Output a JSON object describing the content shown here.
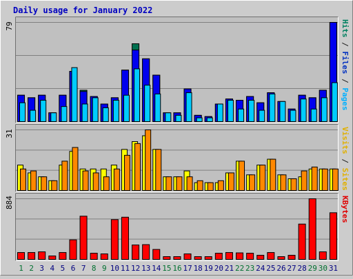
{
  "chart_data": [
    {
      "type": "bar",
      "title": "Daily usage for January 2022",
      "panel": "top",
      "ymax_label": "79",
      "legend_parts": [
        {
          "text": "Pages",
          "color": "#00b0ff"
        },
        {
          "text": " / ",
          "color": "#202020"
        },
        {
          "text": "Files",
          "color": "#0030c0"
        },
        {
          "text": " / ",
          "color": "#202020"
        },
        {
          "text": "Hits",
          "color": "#008060"
        }
      ],
      "categories": [
        "1",
        "2",
        "3",
        "4",
        "5",
        "6",
        "7",
        "8",
        "9",
        "10",
        "11",
        "12",
        "13",
        "14",
        "15",
        "16",
        "17",
        "18",
        "19",
        "20",
        "21",
        "22",
        "23",
        "24",
        "25",
        "26",
        "27",
        "28",
        "29",
        "30",
        "31"
      ],
      "weekend_days": [
        1,
        2,
        8,
        9,
        15,
        16,
        22,
        23,
        29,
        30
      ],
      "ylim": [
        0,
        79
      ],
      "series": [
        {
          "name": "Hits",
          "color": "#007050",
          "values": [
            21,
            19,
            21,
            7,
            21,
            40,
            25,
            20,
            14,
            19,
            41,
            62,
            50,
            37,
            7,
            7,
            26,
            5,
            4,
            14,
            18,
            17,
            20,
            15,
            23,
            16,
            10,
            21,
            19,
            25,
            79
          ]
        },
        {
          "name": "Files",
          "color": "#0000ee",
          "values": [
            21,
            19,
            21,
            7,
            21,
            40,
            24,
            20,
            14,
            19,
            41,
            57,
            50,
            37,
            7,
            7,
            26,
            5,
            4,
            14,
            18,
            17,
            20,
            15,
            23,
            16,
            10,
            21,
            19,
            25,
            79
          ]
        },
        {
          "name": "Pages",
          "color": "#00ccff",
          "values": [
            15,
            9,
            17,
            7,
            12,
            43,
            14,
            19,
            11,
            17,
            21,
            42,
            29,
            22,
            7,
            5,
            23,
            3,
            3,
            14,
            17,
            10,
            17,
            9,
            22,
            16,
            9,
            18,
            10,
            19,
            31
          ]
        }
      ]
    },
    {
      "type": "bar",
      "panel": "middle",
      "ymax_label": "31",
      "legend_parts": [
        {
          "text": "Sites",
          "color": "#e0b000"
        },
        {
          "text": " / ",
          "color": "#202020"
        },
        {
          "text": "Visits",
          "color": "#e0b000"
        }
      ],
      "categories": [
        "1",
        "2",
        "3",
        "4",
        "5",
        "6",
        "7",
        "8",
        "9",
        "10",
        "11",
        "12",
        "13",
        "14",
        "15",
        "16",
        "17",
        "18",
        "19",
        "20",
        "21",
        "22",
        "23",
        "24",
        "25",
        "26",
        "27",
        "28",
        "29",
        "30",
        "31"
      ],
      "ylim": [
        0,
        31
      ],
      "series": [
        {
          "name": "Visits",
          "color": "#ffff00",
          "values": [
            13,
            9,
            7,
            5,
            13,
            20,
            11,
            11,
            11,
            13,
            21,
            25,
            28,
            21,
            7,
            7,
            10,
            4,
            4,
            4,
            9,
            15,
            8,
            13,
            16,
            8,
            6,
            7,
            11,
            11,
            11
          ]
        },
        {
          "name": "Sites",
          "color": "#ff8800",
          "values": [
            11,
            10,
            7,
            5,
            15,
            22,
            10,
            9,
            7,
            11,
            18,
            24,
            31,
            21,
            7,
            7,
            7,
            5,
            4,
            5,
            9,
            15,
            8,
            13,
            16,
            8,
            6,
            10,
            12,
            11,
            11
          ]
        }
      ]
    },
    {
      "type": "bar",
      "panel": "bottom",
      "ymax_label": "884",
      "legend_parts": [
        {
          "text": "KBytes",
          "color": "#e00000"
        }
      ],
      "categories": [
        "1",
        "2",
        "3",
        "4",
        "5",
        "6",
        "7",
        "8",
        "9",
        "10",
        "11",
        "12",
        "13",
        "14",
        "15",
        "16",
        "17",
        "18",
        "19",
        "20",
        "21",
        "22",
        "23",
        "24",
        "25",
        "26",
        "27",
        "28",
        "29",
        "30",
        "31"
      ],
      "ylim": [
        0,
        884
      ],
      "series": [
        {
          "name": "KBytes",
          "color": "#ff0000",
          "values": [
            100,
            100,
            110,
            50,
            100,
            285,
            630,
            90,
            80,
            580,
            615,
            210,
            215,
            145,
            40,
            40,
            80,
            40,
            40,
            90,
            100,
            95,
            90,
            60,
            100,
            40,
            60,
            515,
            884,
            110,
            680
          ]
        }
      ]
    }
  ],
  "colors": {
    "background": "#cccccc",
    "panel_bg": "#c0c0c0",
    "frame": "#707070",
    "title": "#0000c0",
    "axis_label_weekday": "#000080",
    "axis_label_weekend": "#007030",
    "gridline": "#808080"
  }
}
